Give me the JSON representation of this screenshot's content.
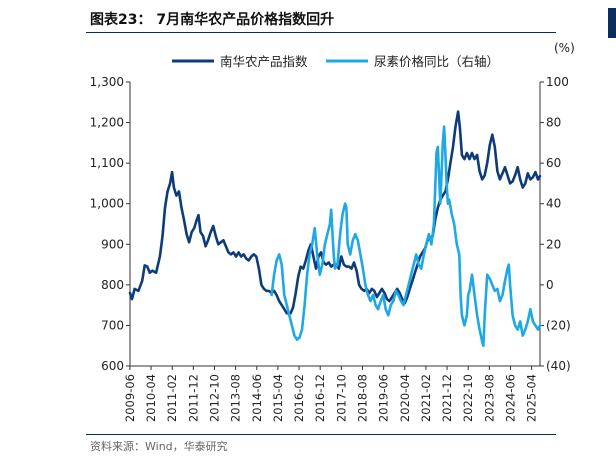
{
  "header": {
    "title": "图表23： 7月南华农产品价格指数回升"
  },
  "footer": {
    "source": "资料来源：Wind，华泰研究"
  },
  "chart_data": {
    "type": "line",
    "title": "图表23： 7月南华农产品价格指数回升",
    "y_left": {
      "min": 600,
      "max": 1300,
      "ticks": [
        "600",
        "700",
        "800",
        "900",
        "1,000",
        "1,100",
        "1,200",
        "1,300"
      ],
      "tick_values": [
        600,
        700,
        800,
        900,
        1000,
        1100,
        1200,
        1300
      ]
    },
    "y_right": {
      "unit": "(%)",
      "min": -40,
      "max": 100,
      "ticks": [
        "(40)",
        "(20)",
        "0",
        "20",
        "40",
        "60",
        "80",
        "100"
      ],
      "tick_values": [
        -40,
        -20,
        0,
        20,
        40,
        60,
        80,
        100
      ]
    },
    "x_ticks": [
      "2009-06",
      "2010-04",
      "2011-02",
      "2011-12",
      "2012-10",
      "2013-08",
      "2014-06",
      "2015-04",
      "2016-02",
      "2016-12",
      "2017-10",
      "2018-08",
      "2019-06",
      "2020-04",
      "2021-02",
      "2021-12",
      "2022-10",
      "2023-08",
      "2024-06",
      "2025-04"
    ],
    "x_range": {
      "start_year": 2009.42,
      "end_year": 2025.58
    },
    "legend": {
      "position": "top"
    },
    "series": [
      {
        "name": "南华农产品指数",
        "axis": "left",
        "color": "#0d3c78",
        "points": [
          [
            2009.42,
            780
          ],
          [
            2009.5,
            765
          ],
          [
            2009.6,
            790
          ],
          [
            2009.75,
            785
          ],
          [
            2009.9,
            810
          ],
          [
            2010.0,
            848
          ],
          [
            2010.1,
            845
          ],
          [
            2010.2,
            830
          ],
          [
            2010.3,
            835
          ],
          [
            2010.45,
            830
          ],
          [
            2010.6,
            870
          ],
          [
            2010.7,
            920
          ],
          [
            2010.8,
            990
          ],
          [
            2010.9,
            1030
          ],
          [
            2011.0,
            1050
          ],
          [
            2011.08,
            1078
          ],
          [
            2011.15,
            1040
          ],
          [
            2011.25,
            1020
          ],
          [
            2011.35,
            1030
          ],
          [
            2011.45,
            990
          ],
          [
            2011.55,
            960
          ],
          [
            2011.65,
            925
          ],
          [
            2011.75,
            905
          ],
          [
            2011.85,
            930
          ],
          [
            2011.95,
            940
          ],
          [
            2012.05,
            960
          ],
          [
            2012.12,
            972
          ],
          [
            2012.2,
            930
          ],
          [
            2012.3,
            920
          ],
          [
            2012.4,
            895
          ],
          [
            2012.5,
            910
          ],
          [
            2012.6,
            930
          ],
          [
            2012.7,
            945
          ],
          [
            2012.8,
            920
          ],
          [
            2012.9,
            900
          ],
          [
            2013.0,
            905
          ],
          [
            2013.1,
            910
          ],
          [
            2013.2,
            895
          ],
          [
            2013.3,
            880
          ],
          [
            2013.4,
            875
          ],
          [
            2013.5,
            880
          ],
          [
            2013.6,
            870
          ],
          [
            2013.7,
            880
          ],
          [
            2013.8,
            870
          ],
          [
            2013.9,
            875
          ],
          [
            2014.0,
            865
          ],
          [
            2014.1,
            860
          ],
          [
            2014.2,
            870
          ],
          [
            2014.3,
            875
          ],
          [
            2014.4,
            870
          ],
          [
            2014.5,
            840
          ],
          [
            2014.6,
            800
          ],
          [
            2014.7,
            790
          ],
          [
            2014.8,
            785
          ],
          [
            2014.9,
            785
          ],
          [
            2015.0,
            780
          ],
          [
            2015.1,
            785
          ],
          [
            2015.2,
            775
          ],
          [
            2015.3,
            760
          ],
          [
            2015.4,
            750
          ],
          [
            2015.5,
            740
          ],
          [
            2015.6,
            730
          ],
          [
            2015.75,
            730
          ],
          [
            2015.85,
            745
          ],
          [
            2015.95,
            780
          ],
          [
            2016.05,
            820
          ],
          [
            2016.15,
            845
          ],
          [
            2016.25,
            840
          ],
          [
            2016.35,
            860
          ],
          [
            2016.45,
            885
          ],
          [
            2016.55,
            900
          ],
          [
            2016.65,
            870
          ],
          [
            2016.75,
            840
          ],
          [
            2016.85,
            870
          ],
          [
            2016.95,
            880
          ],
          [
            2017.05,
            855
          ],
          [
            2017.15,
            850
          ],
          [
            2017.25,
            855
          ],
          [
            2017.35,
            845
          ],
          [
            2017.45,
            850
          ],
          [
            2017.55,
            850
          ],
          [
            2017.65,
            840
          ],
          [
            2017.75,
            870
          ],
          [
            2017.85,
            850
          ],
          [
            2017.95,
            845
          ],
          [
            2018.05,
            845
          ],
          [
            2018.15,
            840
          ],
          [
            2018.25,
            855
          ],
          [
            2018.35,
            835
          ],
          [
            2018.45,
            800
          ],
          [
            2018.55,
            790
          ],
          [
            2018.65,
            785
          ],
          [
            2018.75,
            790
          ],
          [
            2018.85,
            780
          ],
          [
            2018.95,
            790
          ],
          [
            2019.05,
            785
          ],
          [
            2019.15,
            770
          ],
          [
            2019.25,
            780
          ],
          [
            2019.35,
            790
          ],
          [
            2019.45,
            780
          ],
          [
            2019.55,
            765
          ],
          [
            2019.65,
            760
          ],
          [
            2019.75,
            770
          ],
          [
            2019.85,
            780
          ],
          [
            2019.95,
            790
          ],
          [
            2020.05,
            780
          ],
          [
            2020.15,
            765
          ],
          [
            2020.25,
            755
          ],
          [
            2020.35,
            770
          ],
          [
            2020.45,
            790
          ],
          [
            2020.55,
            810
          ],
          [
            2020.65,
            830
          ],
          [
            2020.75,
            850
          ],
          [
            2020.85,
            870
          ],
          [
            2020.95,
            880
          ],
          [
            2021.05,
            890
          ],
          [
            2021.15,
            910
          ],
          [
            2021.25,
            915
          ],
          [
            2021.35,
            920
          ],
          [
            2021.45,
            960
          ],
          [
            2021.55,
            990
          ],
          [
            2021.65,
            1010
          ],
          [
            2021.75,
            1020
          ],
          [
            2021.85,
            1030
          ],
          [
            2021.95,
            1060
          ],
          [
            2022.05,
            1100
          ],
          [
            2022.15,
            1140
          ],
          [
            2022.25,
            1190
          ],
          [
            2022.35,
            1227
          ],
          [
            2022.42,
            1190
          ],
          [
            2022.5,
            1120
          ],
          [
            2022.6,
            1110
          ],
          [
            2022.7,
            1125
          ],
          [
            2022.8,
            1110
          ],
          [
            2022.9,
            1125
          ],
          [
            2023.0,
            1110
          ],
          [
            2023.1,
            1120
          ],
          [
            2023.2,
            1080
          ],
          [
            2023.3,
            1060
          ],
          [
            2023.4,
            1070
          ],
          [
            2023.5,
            1100
          ],
          [
            2023.6,
            1145
          ],
          [
            2023.7,
            1170
          ],
          [
            2023.8,
            1140
          ],
          [
            2023.9,
            1080
          ],
          [
            2024.0,
            1060
          ],
          [
            2024.1,
            1075
          ],
          [
            2024.2,
            1090
          ],
          [
            2024.3,
            1070
          ],
          [
            2024.4,
            1050
          ],
          [
            2024.5,
            1055
          ],
          [
            2024.6,
            1070
          ],
          [
            2024.7,
            1090
          ],
          [
            2024.8,
            1060
          ],
          [
            2024.9,
            1040
          ],
          [
            2025.0,
            1050
          ],
          [
            2025.1,
            1075
          ],
          [
            2025.2,
            1060
          ],
          [
            2025.3,
            1065
          ],
          [
            2025.4,
            1078
          ],
          [
            2025.5,
            1060
          ],
          [
            2025.58,
            1068
          ]
        ]
      },
      {
        "name": "尿素价格同比（右轴）",
        "axis": "right",
        "color": "#1ea8e6",
        "points": [
          [
            2015.0,
            -5
          ],
          [
            2015.1,
            5
          ],
          [
            2015.2,
            12
          ],
          [
            2015.3,
            15
          ],
          [
            2015.4,
            10
          ],
          [
            2015.5,
            -5
          ],
          [
            2015.6,
            -10
          ],
          [
            2015.7,
            -15
          ],
          [
            2015.8,
            -20
          ],
          [
            2015.9,
            -25
          ],
          [
            2016.0,
            -27
          ],
          [
            2016.1,
            -26
          ],
          [
            2016.2,
            -22
          ],
          [
            2016.3,
            -10
          ],
          [
            2016.4,
            5
          ],
          [
            2016.5,
            15
          ],
          [
            2016.6,
            20
          ],
          [
            2016.7,
            28
          ],
          [
            2016.8,
            15
          ],
          [
            2016.9,
            5
          ],
          [
            2017.0,
            10
          ],
          [
            2017.1,
            20
          ],
          [
            2017.2,
            25
          ],
          [
            2017.3,
            30
          ],
          [
            2017.35,
            37
          ],
          [
            2017.4,
            25
          ],
          [
            2017.45,
            15
          ],
          [
            2017.5,
            8
          ],
          [
            2017.6,
            10
          ],
          [
            2017.7,
            25
          ],
          [
            2017.8,
            35
          ],
          [
            2017.9,
            40
          ],
          [
            2017.95,
            38
          ],
          [
            2018.0,
            20
          ],
          [
            2018.1,
            15
          ],
          [
            2018.2,
            22
          ],
          [
            2018.3,
            25
          ],
          [
            2018.4,
            22
          ],
          [
            2018.5,
            15
          ],
          [
            2018.6,
            8
          ],
          [
            2018.7,
            0
          ],
          [
            2018.8,
            -5
          ],
          [
            2018.9,
            -8
          ],
          [
            2019.0,
            -5
          ],
          [
            2019.1,
            -10
          ],
          [
            2019.2,
            -12
          ],
          [
            2019.3,
            -8
          ],
          [
            2019.4,
            -5
          ],
          [
            2019.5,
            -12
          ],
          [
            2019.6,
            -15
          ],
          [
            2019.7,
            -10
          ],
          [
            2019.8,
            -8
          ],
          [
            2019.9,
            -3
          ],
          [
            2020.0,
            -5
          ],
          [
            2020.1,
            -8
          ],
          [
            2020.2,
            -10
          ],
          [
            2020.3,
            -5
          ],
          [
            2020.4,
            0
          ],
          [
            2020.5,
            5
          ],
          [
            2020.6,
            10
          ],
          [
            2020.7,
            15
          ],
          [
            2020.8,
            10
          ],
          [
            2020.9,
            8
          ],
          [
            2021.0,
            15
          ],
          [
            2021.1,
            20
          ],
          [
            2021.2,
            25
          ],
          [
            2021.3,
            20
          ],
          [
            2021.35,
            25
          ],
          [
            2021.4,
            30
          ],
          [
            2021.5,
            65
          ],
          [
            2021.55,
            68
          ],
          [
            2021.6,
            55
          ],
          [
            2021.65,
            40
          ],
          [
            2021.7,
            55
          ],
          [
            2021.75,
            70
          ],
          [
            2021.8,
            78
          ],
          [
            2021.85,
            65
          ],
          [
            2021.9,
            50
          ],
          [
            2021.95,
            40
          ],
          [
            2022.0,
            42
          ],
          [
            2022.1,
            35
          ],
          [
            2022.2,
            30
          ],
          [
            2022.3,
            20
          ],
          [
            2022.4,
            15
          ],
          [
            2022.45,
            -5
          ],
          [
            2022.5,
            -15
          ],
          [
            2022.6,
            -20
          ],
          [
            2022.7,
            -15
          ],
          [
            2022.75,
            -5
          ],
          [
            2022.8,
            -3
          ],
          [
            2022.9,
            5
          ],
          [
            2023.0,
            -5
          ],
          [
            2023.1,
            -15
          ],
          [
            2023.2,
            -22
          ],
          [
            2023.3,
            -28
          ],
          [
            2023.35,
            -30
          ],
          [
            2023.4,
            -15
          ],
          [
            2023.5,
            5
          ],
          [
            2023.6,
            3
          ],
          [
            2023.7,
            0
          ],
          [
            2023.8,
            -3
          ],
          [
            2023.9,
            -2
          ],
          [
            2024.0,
            -8
          ],
          [
            2024.1,
            -5
          ],
          [
            2024.2,
            2
          ],
          [
            2024.3,
            8
          ],
          [
            2024.35,
            10
          ],
          [
            2024.4,
            0
          ],
          [
            2024.5,
            -15
          ],
          [
            2024.6,
            -20
          ],
          [
            2024.7,
            -22
          ],
          [
            2024.8,
            -18
          ],
          [
            2024.9,
            -25
          ],
          [
            2025.0,
            -22
          ],
          [
            2025.1,
            -18
          ],
          [
            2025.2,
            -12
          ],
          [
            2025.3,
            -18
          ],
          [
            2025.4,
            -20
          ],
          [
            2025.5,
            -22
          ],
          [
            2025.58,
            -20
          ]
        ]
      }
    ]
  }
}
